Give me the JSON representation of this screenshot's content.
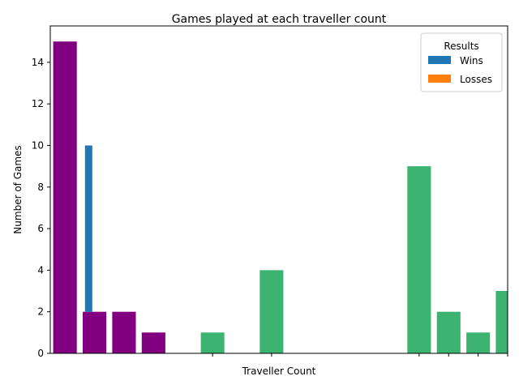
{
  "chart_data": {
    "type": "bar",
    "title": "Games played at each traveller count",
    "xlabel": "Traveller Count",
    "ylabel": "Number of Games",
    "ylim": [
      0,
      15.75
    ],
    "yticks": [
      0,
      2,
      4,
      6,
      8,
      10,
      12,
      14
    ],
    "xlim": [
      0,
      15.5
    ],
    "grid": false,
    "legend": {
      "title": "Results",
      "placement": "top-right",
      "entries": [
        {
          "name": "Wins",
          "color": "#1f77b4"
        },
        {
          "name": "Losses",
          "color": "#ff7f0e"
        }
      ]
    },
    "colors": {
      "purple": "#800080",
      "green": "#3cb371",
      "wins": "#1f77b4",
      "losses": "#ff7f0e"
    },
    "bars": [
      {
        "x": 0.5,
        "value": 15,
        "color": "#800080"
      },
      {
        "x": 1.5,
        "value": 2,
        "color": "#800080"
      },
      {
        "x": 2.5,
        "value": 2,
        "color": "#800080"
      },
      {
        "x": 3.5,
        "value": 1,
        "color": "#800080"
      },
      {
        "x": 5.5,
        "value": 1,
        "color": "#3cb371"
      },
      {
        "x": 7.5,
        "value": 4,
        "color": "#3cb371"
      },
      {
        "x": 12.5,
        "value": 9,
        "color": "#3cb371"
      },
      {
        "x": 13.5,
        "value": 2,
        "color": "#3cb371"
      },
      {
        "x": 14.5,
        "value": 1,
        "color": "#3cb371"
      },
      {
        "x": 15.5,
        "value": 3,
        "color": "#3cb371"
      }
    ],
    "overlay_bars": [
      {
        "x": 1.3,
        "value": 10,
        "base": 2,
        "color": "#1f77b4"
      }
    ],
    "xticks": [
      5.5,
      7.5,
      12.5,
      13.5,
      14.5,
      15.5
    ]
  }
}
